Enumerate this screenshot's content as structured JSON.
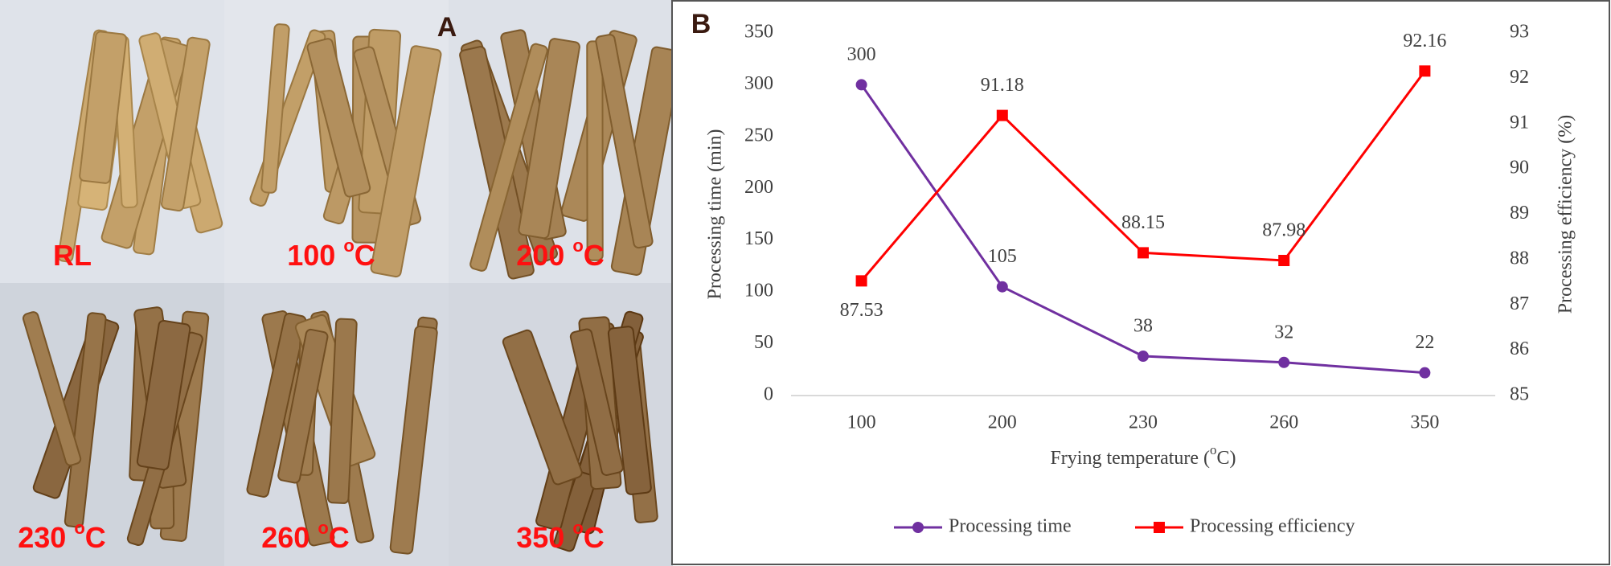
{
  "panel_a": {
    "label": "A",
    "photos": [
      {
        "parts": [
          "RL"
        ]
      },
      {
        "parts": [
          "100 ",
          "o",
          "C"
        ]
      },
      {
        "parts": [
          "200 ",
          "o",
          "C"
        ]
      },
      {
        "parts": [
          "230 ",
          "o",
          "C"
        ]
      },
      {
        "parts": [
          "260 ",
          "o",
          "C"
        ]
      },
      {
        "parts": [
          "350 ",
          "o",
          "C"
        ]
      }
    ]
  },
  "chart_data": {
    "type": "line",
    "panel_label": "B",
    "xlabel_parts": [
      "Frying temperature (",
      "o",
      "C)"
    ],
    "ylabel": "Processing time (min)",
    "y2label": "Processing efficiency (%)",
    "categories": [
      "100",
      "200",
      "230",
      "260",
      "350"
    ],
    "series": [
      {
        "name": "Processing time",
        "color": "#7030a0",
        "marker": "circle",
        "values": [
          300,
          105,
          38,
          32,
          22
        ]
      },
      {
        "name": "Processing efficiency",
        "color": "#ff0000",
        "marker": "square",
        "axis": "y2",
        "values": [
          87.53,
          91.18,
          88.15,
          87.98,
          92.16
        ]
      }
    ],
    "ylim": [
      0,
      350
    ],
    "yticks": [
      0,
      50,
      100,
      150,
      200,
      250,
      300,
      350
    ],
    "y2lim": [
      85,
      93
    ],
    "y2ticks": [
      85,
      86,
      87,
      88,
      89,
      90,
      91,
      92,
      93
    ],
    "legend": "bottom"
  }
}
